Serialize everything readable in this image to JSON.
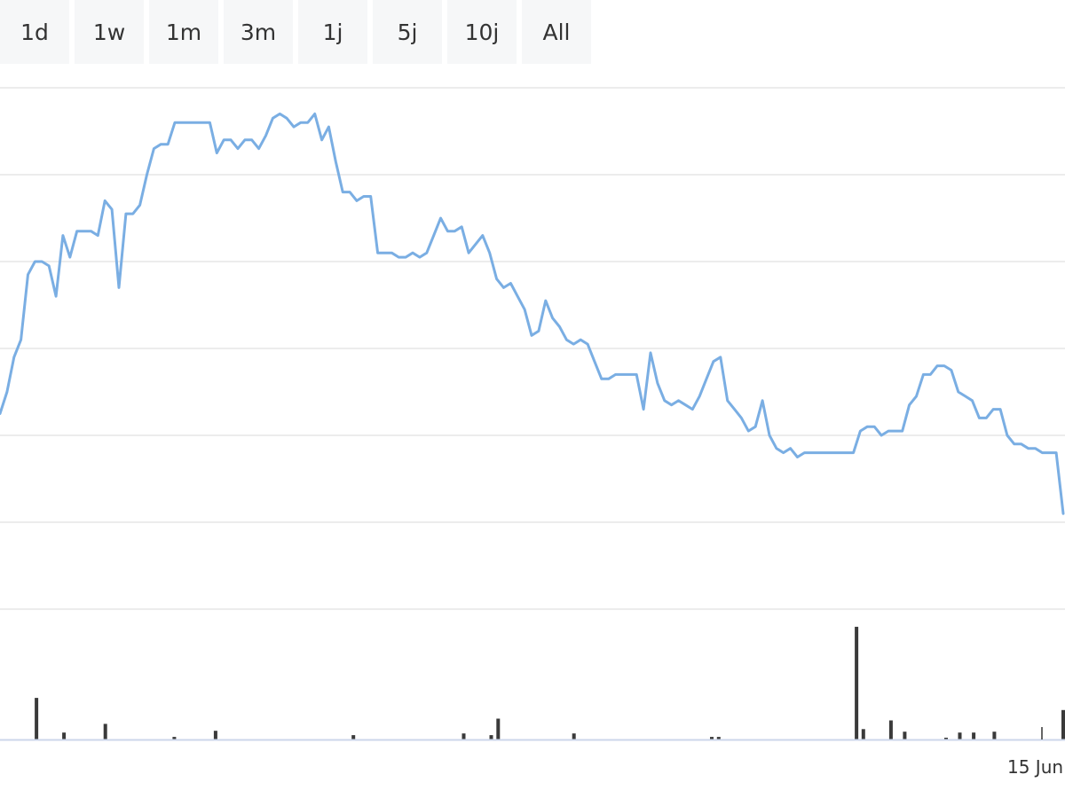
{
  "range_selector": {
    "buttons": [
      {
        "label": "1d"
      },
      {
        "label": "1w"
      },
      {
        "label": "1m"
      },
      {
        "label": "3m"
      },
      {
        "label": "1j"
      },
      {
        "label": "5j"
      },
      {
        "label": "10j"
      },
      {
        "label": "All"
      }
    ]
  },
  "colors": {
    "price_line": "#7aaee3",
    "volume_bar": "#3a3a3a",
    "grid": "#e6e6e6",
    "axis": "#ccd6eb",
    "button_bg": "#f6f7f8",
    "button_text": "#333333"
  },
  "chart_data": {
    "type": "line",
    "grid": true,
    "price": {
      "values": [
        35,
        40,
        48,
        52,
        67,
        70,
        70,
        69,
        62,
        76,
        71,
        77,
        77,
        77,
        76,
        84,
        82,
        64,
        81,
        81,
        83,
        90,
        96,
        97,
        97,
        102,
        102,
        102,
        102,
        102,
        102,
        95,
        98,
        98,
        96,
        98,
        98,
        96,
        99,
        103,
        104,
        103,
        101,
        102,
        102,
        104,
        98,
        101,
        93,
        86,
        86,
        84,
        85,
        85,
        72,
        72,
        72,
        71,
        71,
        72,
        71,
        72,
        76,
        80,
        77,
        77,
        78,
        72,
        74,
        76,
        72,
        66,
        64,
        65,
        62,
        59,
        53,
        54,
        61,
        57,
        55,
        52,
        51,
        52,
        51,
        47,
        43,
        43,
        44,
        44,
        44,
        44,
        36,
        49,
        42,
        38,
        37,
        38,
        37,
        36,
        39,
        43,
        47,
        48,
        38,
        36,
        34,
        31,
        32,
        38,
        30,
        27,
        26,
        27,
        25,
        26,
        26,
        26,
        26,
        26,
        26,
        26,
        26,
        31,
        32,
        32,
        30,
        31,
        31,
        31,
        37,
        39,
        44,
        44,
        46,
        46,
        45,
        40,
        39,
        38,
        34,
        34,
        36,
        36,
        30,
        28,
        28,
        27,
        27,
        26,
        26,
        26,
        12
      ],
      "ylim": [
        10,
        110
      ]
    },
    "volume": {
      "values": [
        0,
        0,
        0,
        0,
        48,
        0,
        0,
        0,
        8,
        0,
        0,
        0,
        0,
        0,
        18,
        0,
        0,
        0,
        0,
        0,
        0,
        0,
        0,
        0,
        3,
        0,
        0,
        0,
        0,
        0,
        10,
        0,
        0,
        0,
        0,
        0,
        0,
        0,
        0,
        0,
        0,
        0,
        0,
        0,
        0,
        0,
        0,
        0,
        0,
        0,
        5,
        0,
        0,
        0,
        0,
        0,
        0,
        0,
        0,
        0,
        0,
        0,
        0,
        0,
        0,
        0,
        7,
        0,
        0,
        0,
        5,
        24,
        0,
        0,
        0,
        0,
        0,
        0,
        0,
        0,
        0,
        0,
        7,
        0,
        0,
        0,
        0,
        0,
        0,
        0,
        0,
        0,
        0,
        0,
        0,
        0,
        0,
        0,
        0,
        0,
        0,
        0,
        3,
        3,
        0,
        0,
        0,
        0,
        0,
        0,
        0,
        0,
        0,
        0,
        0,
        0,
        0,
        0,
        0,
        0,
        0,
        0,
        0,
        130,
        12,
        0,
        0,
        0,
        22,
        0,
        9,
        0,
        0,
        0,
        0,
        0,
        2,
        0,
        8,
        0,
        8,
        0,
        0,
        9,
        0,
        0,
        0,
        0,
        0,
        0,
        0,
        0,
        0,
        34
      ],
      "ylim": [
        0,
        135
      ]
    },
    "x_tick_labels": [
      "15 Jun"
    ]
  }
}
